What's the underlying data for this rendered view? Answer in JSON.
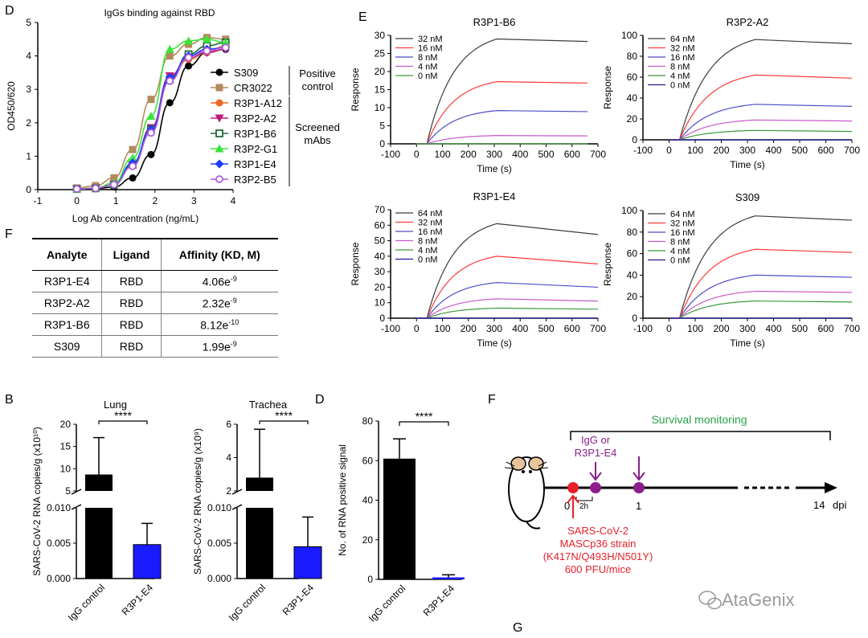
{
  "panel_labels": {
    "D_top": "D",
    "E": "E",
    "F_table": "F",
    "B": "B",
    "D_bottom": "D",
    "F_bottom": "F",
    "G": "G"
  },
  "watermark": "AtaGenix",
  "chart_data": [
    {
      "id": "elisa",
      "type": "line",
      "title": "IgGs binding against RBD",
      "xlabel": "Log Ab concentration (ng/mL)",
      "ylabel": "OD450/620",
      "xlim": [
        -1,
        4
      ],
      "ylim": [
        0,
        5
      ],
      "xticks": [
        "-1",
        "0",
        "1",
        "2",
        "3",
        "4"
      ],
      "yticks": [
        "0",
        "1",
        "2",
        "3",
        "4",
        "5"
      ],
      "x": [
        0,
        0.48,
        0.95,
        1.43,
        1.9,
        2.38,
        2.86,
        3.33,
        3.81
      ],
      "series": [
        {
          "name": "S309",
          "color": "#000000",
          "marker": "circle",
          "values": [
            0.02,
            0.03,
            0.08,
            0.35,
            1.05,
            2.6,
            3.7,
            4.1,
            4.2
          ]
        },
        {
          "name": "CR3022",
          "color": "#b38a5b",
          "marker": "square",
          "values": [
            0.05,
            0.12,
            0.35,
            1.2,
            2.7,
            4.0,
            4.35,
            4.55,
            4.5
          ]
        },
        {
          "name": "R3P1-A12",
          "color": "#f26522",
          "marker": "circle",
          "values": [
            0.02,
            0.04,
            0.15,
            0.75,
            1.7,
            3.3,
            3.9,
            4.1,
            4.3
          ]
        },
        {
          "name": "R3P2-A2",
          "color": "#c0187a",
          "marker": "triangle-down",
          "values": [
            0.02,
            0.04,
            0.15,
            0.75,
            1.85,
            3.4,
            3.95,
            4.1,
            4.2
          ]
        },
        {
          "name": "R3P1-B6",
          "color": "#1f6b3a",
          "marker": "square-open",
          "values": [
            0.02,
            0.04,
            0.15,
            0.75,
            1.8,
            3.3,
            4.05,
            4.3,
            4.4
          ]
        },
        {
          "name": "R3P2-G1",
          "color": "#39e639",
          "marker": "triangle",
          "values": [
            0.02,
            0.05,
            0.2,
            0.95,
            2.2,
            4.2,
            4.45,
            4.5,
            4.4
          ]
        },
        {
          "name": "R3P1-E4",
          "color": "#1e3cff",
          "marker": "diamond",
          "values": [
            0.02,
            0.04,
            0.15,
            0.8,
            1.8,
            3.35,
            4.0,
            4.2,
            4.25
          ]
        },
        {
          "name": "R3P2-B5",
          "color": "#b05cd6",
          "marker": "circle-open",
          "values": [
            0.02,
            0.04,
            0.15,
            0.7,
            1.7,
            3.25,
            3.95,
            4.15,
            4.25
          ]
        }
      ],
      "groups": [
        {
          "label": [
            "Positive",
            "control"
          ]
        },
        {
          "label": [
            "Screened",
            "mAbs"
          ]
        }
      ]
    },
    {
      "id": "spr1",
      "type": "line",
      "title": "R3P1-B6",
      "xlabel": "Time (s)",
      "ylabel": "Response",
      "xlim": [
        -100,
        700
      ],
      "ylim": [
        0,
        30
      ],
      "xticks": [
        -100,
        0,
        100,
        200,
        300,
        400,
        500,
        600,
        700
      ],
      "yticks": [
        0,
        5,
        10,
        15,
        20,
        25,
        30
      ],
      "assoc_start": 40,
      "dissoc_start": 310,
      "end": 660,
      "series": [
        {
          "name": "32 nM",
          "color": "#3c3c3c",
          "peak": 29,
          "end_value": 28.3
        },
        {
          "name": "16 nM",
          "color": "#ff3b3b",
          "peak": 17.2,
          "end_value": 16.8
        },
        {
          "name": "8 nM",
          "color": "#4d4dc8",
          "peak": 9.2,
          "end_value": 8.9
        },
        {
          "name": "4 nM",
          "color": "#c85ac8",
          "peak": 2.3,
          "end_value": 2.2
        },
        {
          "name": "0 nM",
          "color": "#3a9a3a",
          "peak": 0,
          "end_value": 0
        }
      ]
    },
    {
      "id": "spr2",
      "type": "line",
      "title": "R3P2-A2",
      "xlabel": "Time (s)",
      "ylabel": "Response",
      "xlim": [
        -100,
        700
      ],
      "ylim": [
        0,
        100
      ],
      "xticks": [
        -100,
        0,
        100,
        200,
        300,
        400,
        500,
        600,
        700
      ],
      "yticks": [
        0,
        20,
        40,
        60,
        80,
        100
      ],
      "assoc_start": 40,
      "dissoc_start": 330,
      "end": 700,
      "series": [
        {
          "name": "64 nM",
          "color": "#3c3c3c",
          "peak": 96,
          "end_value": 92
        },
        {
          "name": "32 nM",
          "color": "#ff3b3b",
          "peak": 62,
          "end_value": 59
        },
        {
          "name": "16 nM",
          "color": "#4d4dc8",
          "peak": 34,
          "end_value": 32
        },
        {
          "name": "8 nM",
          "color": "#c85ac8",
          "peak": 19,
          "end_value": 18
        },
        {
          "name": "4 nM",
          "color": "#3a9a3a",
          "peak": 9,
          "end_value": 8
        },
        {
          "name": "0 nM",
          "color": "#1f1f9a",
          "peak": 0,
          "end_value": 0
        }
      ]
    },
    {
      "id": "spr3",
      "type": "line",
      "title": "R3P1-E4",
      "xlabel": "Time (s)",
      "ylabel": "Response",
      "xlim": [
        -100,
        700
      ],
      "ylim": [
        0,
        70
      ],
      "xticks": [
        -100,
        0,
        100,
        200,
        300,
        400,
        500,
        600,
        700
      ],
      "yticks": [
        0,
        10,
        20,
        30,
        40,
        50,
        60,
        70
      ],
      "assoc_start": 40,
      "dissoc_start": 310,
      "end": 700,
      "series": [
        {
          "name": "64 nM",
          "color": "#3c3c3c",
          "peak": 61,
          "end_value": 54
        },
        {
          "name": "32 nM",
          "color": "#ff3b3b",
          "peak": 40,
          "end_value": 35
        },
        {
          "name": "16 nM",
          "color": "#4d4dc8",
          "peak": 23,
          "end_value": 20
        },
        {
          "name": "8 nM",
          "color": "#c85ac8",
          "peak": 12.5,
          "end_value": 11
        },
        {
          "name": "4 nM",
          "color": "#3a9a3a",
          "peak": 6.5,
          "end_value": 5.8
        },
        {
          "name": "0 nM",
          "color": "#1f1f9a",
          "peak": 0,
          "end_value": 0
        }
      ]
    },
    {
      "id": "spr4",
      "type": "line",
      "title": "S309",
      "xlabel": "Time (s)",
      "ylabel": "Response",
      "xlim": [
        -100,
        700
      ],
      "ylim": [
        0,
        100
      ],
      "xticks": [
        -100,
        0,
        100,
        200,
        300,
        400,
        500,
        600,
        700
      ],
      "yticks": [
        0,
        20,
        40,
        60,
        80,
        100
      ],
      "assoc_start": 40,
      "dissoc_start": 330,
      "end": 700,
      "series": [
        {
          "name": "64 nM",
          "color": "#3c3c3c",
          "peak": 95,
          "end_value": 91
        },
        {
          "name": "32 nM",
          "color": "#ff3b3b",
          "peak": 64,
          "end_value": 61
        },
        {
          "name": "16 nM",
          "color": "#4d4dc8",
          "peak": 40,
          "end_value": 38
        },
        {
          "name": "8 nM",
          "color": "#c85ac8",
          "peak": 25,
          "end_value": 24
        },
        {
          "name": "4 nM",
          "color": "#3a9a3a",
          "peak": 16,
          "end_value": 15
        },
        {
          "name": "0 nM",
          "color": "#1f1f9a",
          "peak": 0,
          "end_value": 0
        }
      ]
    },
    {
      "id": "lung",
      "type": "bar",
      "title": "Lung",
      "ylabel": "SARS-CoV-2 RNA copies/g (x10¹⁰)",
      "categories": [
        "IgG control",
        "R3P1-E4"
      ],
      "colors": [
        "#000000",
        "#1a1aff"
      ],
      "upper": {
        "ylim": [
          5,
          20
        ],
        "yticks": [
          "5",
          "10",
          "15",
          "20"
        ]
      },
      "lower": {
        "ylim": [
          0,
          0.01
        ],
        "yticks": [
          "0.000",
          "0.005",
          "0.010"
        ]
      },
      "values": [
        8.7,
        0.0048
      ],
      "errors": [
        17,
        0.0078
      ],
      "significance": "****"
    },
    {
      "id": "trachea",
      "type": "bar",
      "title": "Trachea",
      "ylabel": "SARS-CoV-2 RNA copies/g (x10⁹)",
      "categories": [
        "IgG control",
        "R3P1-E4"
      ],
      "colors": [
        "#000000",
        "#1a1aff"
      ],
      "upper": {
        "ylim": [
          2,
          6
        ],
        "yticks": [
          "2",
          "4",
          "6"
        ]
      },
      "lower": {
        "ylim": [
          0,
          0.01
        ],
        "yticks": [
          "0.000",
          "0.005",
          "0.010"
        ]
      },
      "values": [
        2.8,
        0.0045
      ],
      "errors": [
        5.7,
        0.0087
      ],
      "significance": "****"
    },
    {
      "id": "rna_signal",
      "type": "bar",
      "ylabel": "No. of RNA positive signal",
      "categories": [
        "IgG control",
        "R3P1-E4"
      ],
      "colors": [
        "#000000",
        "#1a1aff"
      ],
      "ylim": [
        0,
        80
      ],
      "yticks": [
        "0",
        "20",
        "40",
        "60",
        "80"
      ],
      "values": [
        61,
        1
      ],
      "errors": [
        71,
        2.3
      ],
      "significance": "****"
    }
  ],
  "affinity_table": {
    "headers": [
      "Analyte",
      "Ligand",
      "Affinity (KD, M)"
    ],
    "rows": [
      {
        "analyte": "R3P1-E4",
        "ligand": "RBD",
        "mantissa": "4.06e",
        "exponent": "-9"
      },
      {
        "analyte": "R3P2-A2",
        "ligand": "RBD",
        "mantissa": "2.32e",
        "exponent": "-9"
      },
      {
        "analyte": "R3P1-B6",
        "ligand": "RBD",
        "mantissa": "8.12e",
        "exponent": "-10"
      },
      {
        "analyte": "S309",
        "ligand": "RBD",
        "mantissa": "1.99e",
        "exponent": "-9"
      }
    ]
  },
  "timeline": {
    "survival_label": "Survival monitoring",
    "treatment_label_line1": "IgG or",
    "treatment_label_line2": "R3P1-E4",
    "tick0": "0",
    "tick1": "1",
    "tick2h": "2h",
    "end_label": "14",
    "unit": "dpi",
    "challenge_lines": [
      "SARS-CoV-2",
      "MASCp36 strain",
      "(K417N/Q493H/N501Y)",
      "600 PFU/mice"
    ],
    "colors": {
      "challenge": "#e8202a",
      "treatment": "#8b1f8b",
      "survival": "#2aa24a"
    }
  }
}
